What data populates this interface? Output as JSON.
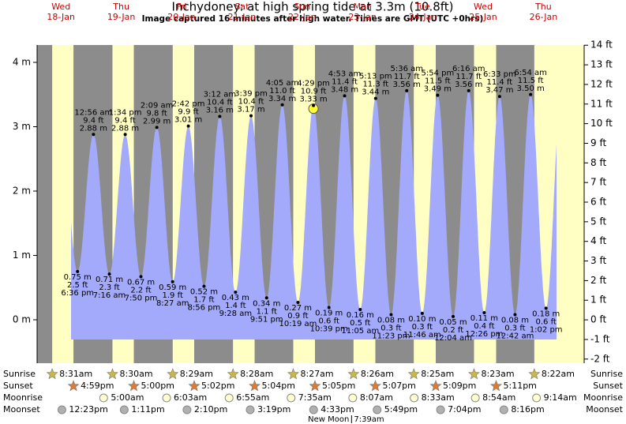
{
  "chart_data": {
    "type": "tide",
    "title": "Inchydoney: at high  spring tide at 3.3m (10.8ft)",
    "subtitle": "Image captured 16 minutes after high water. Times are GMT (UTC +0hrs)",
    "ylim": [
      -0.675,
      4.27
    ],
    "yticks": [
      {
        "value": 0,
        "label": "0 m"
      },
      {
        "value": 1,
        "label": "1 m"
      },
      {
        "value": 2,
        "label": "2 m"
      },
      {
        "value": 3,
        "label": "3 m"
      },
      {
        "value": 4,
        "label": "4 m"
      }
    ],
    "y2lim": [
      -2.21,
      14.01
    ],
    "y2ticks": [
      {
        "value": -2,
        "label": "-2 ft"
      },
      {
        "value": -1,
        "label": "-1 ft"
      },
      {
        "value": 0,
        "label": "0 ft"
      },
      {
        "value": 1,
        "label": "1 ft"
      },
      {
        "value": 2,
        "label": "2 ft"
      },
      {
        "value": 3,
        "label": "3 ft"
      },
      {
        "value": 4,
        "label": "4 ft"
      },
      {
        "value": 5,
        "label": "5 ft"
      },
      {
        "value": 6,
        "label": "6 ft"
      },
      {
        "value": 7,
        "label": "7 ft"
      },
      {
        "value": 8,
        "label": "8 ft"
      },
      {
        "value": 9,
        "label": "9 ft"
      },
      {
        "value": 10,
        "label": "10 ft"
      },
      {
        "value": 11,
        "label": "11 ft"
      },
      {
        "value": 12,
        "label": "12 ft"
      },
      {
        "value": 13,
        "label": "13 ft"
      },
      {
        "value": 14,
        "label": "14 ft"
      }
    ],
    "row_labels": {
      "sunrise": "Sunrise",
      "sunset": "Sunset",
      "moonrise": "Moonrise",
      "moonset": "Moonset"
    },
    "days": [
      {
        "weekday": "Wed",
        "date": "18-Jan",
        "sunrise": "8:31am",
        "sunset": "4:59pm",
        "moonrise": null,
        "moonset": "12:23pm",
        "tides": [
          {
            "time": "6:36 pm",
            "value": 0.75,
            "value_label": "0.75 m",
            "ft": "2.5 ft"
          }
        ]
      },
      {
        "weekday": "Thu",
        "date": "19-Jan",
        "sunrise": "8:30am",
        "sunset": "5:00pm",
        "moonrise": "5:00am",
        "moonset": "1:11pm",
        "tides": [
          {
            "time": "12:56 am",
            "value": 2.88,
            "value_label": "2.88 m",
            "ft": "9.4 ft"
          },
          {
            "time": "7:16 am",
            "value": 0.71,
            "value_label": "0.71 m",
            "ft": "2.3 ft"
          },
          {
            "time": "1:34 pm",
            "value": 2.88,
            "value_label": "2.88 m",
            "ft": "9.4 ft"
          },
          {
            "time": "7:50 pm",
            "value": 0.67,
            "value_label": "0.67 m",
            "ft": "2.2 ft"
          }
        ]
      },
      {
        "weekday": "Fri",
        "date": "20-Jan",
        "sunrise": "8:29am",
        "sunset": "5:02pm",
        "moonrise": "6:03am",
        "moonset": "2:10pm",
        "tides": [
          {
            "time": "2:09 am",
            "value": 2.99,
            "value_label": "2.99 m",
            "ft": "9.8 ft"
          },
          {
            "time": "8:27 am",
            "value": 0.59,
            "value_label": "0.59 m",
            "ft": "1.9 ft"
          },
          {
            "time": "2:42 pm",
            "value": 3.01,
            "value_label": "3.01 m",
            "ft": "9.9 ft"
          },
          {
            "time": "8:56 pm",
            "value": 0.52,
            "value_label": "0.52 m",
            "ft": "1.7 ft"
          }
        ]
      },
      {
        "weekday": "Sat",
        "date": "21-Jan",
        "sunrise": "8:28am",
        "sunset": "5:04pm",
        "moonrise": "6:55am",
        "moonset": "3:19pm",
        "tides": [
          {
            "time": "3:12 am",
            "value": 3.16,
            "value_label": "3.16 m",
            "ft": "10.4 ft"
          },
          {
            "time": "9:28 am",
            "value": 0.43,
            "value_label": "0.43 m",
            "ft": "1.4 ft"
          },
          {
            "time": "3:39 pm",
            "value": 3.17,
            "value_label": "3.17 m",
            "ft": "10.4 ft"
          },
          {
            "time": "9:51 pm",
            "value": 0.34,
            "value_label": "0.34 m",
            "ft": "1.1 ft"
          }
        ]
      },
      {
        "weekday": "Sun",
        "date": "22-Jan",
        "sunrise": "8:27am",
        "sunset": "5:05pm",
        "moonrise": "7:35am",
        "moonset": "4:33pm",
        "tides": [
          {
            "time": "4:05 am",
            "value": 3.34,
            "value_label": "3.34 m",
            "ft": "11.0 ft"
          },
          {
            "time": "10:19 am",
            "value": 0.27,
            "value_label": "0.27 m",
            "ft": "0.9 ft"
          },
          {
            "time": "4:29 pm",
            "value": 3.33,
            "value_label": "3.33 m",
            "ft": "10.9 ft"
          },
          {
            "time": "10:39 pm",
            "value": 0.19,
            "value_label": "0.19 m",
            "ft": "0.6 ft"
          }
        ]
      },
      {
        "weekday": "Mon",
        "date": "23-Jan",
        "sunrise": "8:26am",
        "sunset": "5:07pm",
        "moonrise": "8:07am",
        "moonset": "5:49pm",
        "moon_phase": {
          "name": "New Moon",
          "time": "7:39am"
        },
        "tides": [
          {
            "time": "4:53 am",
            "value": 3.48,
            "value_label": "3.48 m",
            "ft": "11.4 ft"
          },
          {
            "time": "11:05 am",
            "value": 0.16,
            "value_label": "0.16 m",
            "ft": "0.5 ft"
          },
          {
            "time": "5:13 pm",
            "value": 3.44,
            "value_label": "3.44 m",
            "ft": "11.3 ft"
          },
          {
            "time": "11:23 pm",
            "value": 0.08,
            "value_label": "0.08 m",
            "ft": "0.3 ft"
          }
        ]
      },
      {
        "weekday": "Tue",
        "date": "24-Jan",
        "sunrise": "8:25am",
        "sunset": "5:09pm",
        "moonrise": "8:33am",
        "moonset": "7:04pm",
        "tides": [
          {
            "time": "5:36 am",
            "value": 3.56,
            "value_label": "3.56 m",
            "ft": "11.7 ft"
          },
          {
            "time": "11:46 am",
            "value": 0.1,
            "value_label": "0.10 m",
            "ft": "0.3 ft"
          },
          {
            "time": "5:54 pm",
            "value": 3.49,
            "value_label": "3.49 m",
            "ft": "11.5 ft"
          }
        ]
      },
      {
        "weekday": "Wed",
        "date": "25-Jan",
        "sunrise": "8:23am",
        "sunset": "5:11pm",
        "moonrise": "8:54am",
        "moonset": "8:16pm",
        "tides": [
          {
            "time": "12:04 am",
            "value": 0.05,
            "value_label": "0.05 m",
            "ft": "0.2 ft"
          },
          {
            "time": "6:16 am",
            "value": 3.56,
            "value_label": "3.56 m",
            "ft": "11.7 ft"
          },
          {
            "time": "12:26 pm",
            "value": 0.11,
            "value_label": "0.11 m",
            "ft": "0.4 ft"
          },
          {
            "time": "6:33 pm",
            "value": 3.47,
            "value_label": "3.47 m",
            "ft": "11.4 ft"
          }
        ]
      },
      {
        "weekday": "Thu",
        "date": "26-Jan",
        "sunrise": "8:22am",
        "sunset": null,
        "moonrise": "9:14am",
        "moonset": null,
        "tides": [
          {
            "time": "12:42 am",
            "value": 0.08,
            "value_label": "0.08 m",
            "ft": "0.3 ft"
          },
          {
            "time": "6:54 am",
            "value": 3.5,
            "value_label": "3.50 m",
            "ft": "11.5 ft"
          },
          {
            "time": "1:02 pm",
            "value": 0.18,
            "value_label": "0.18 m",
            "ft": "0.6 ft"
          }
        ]
      }
    ]
  }
}
